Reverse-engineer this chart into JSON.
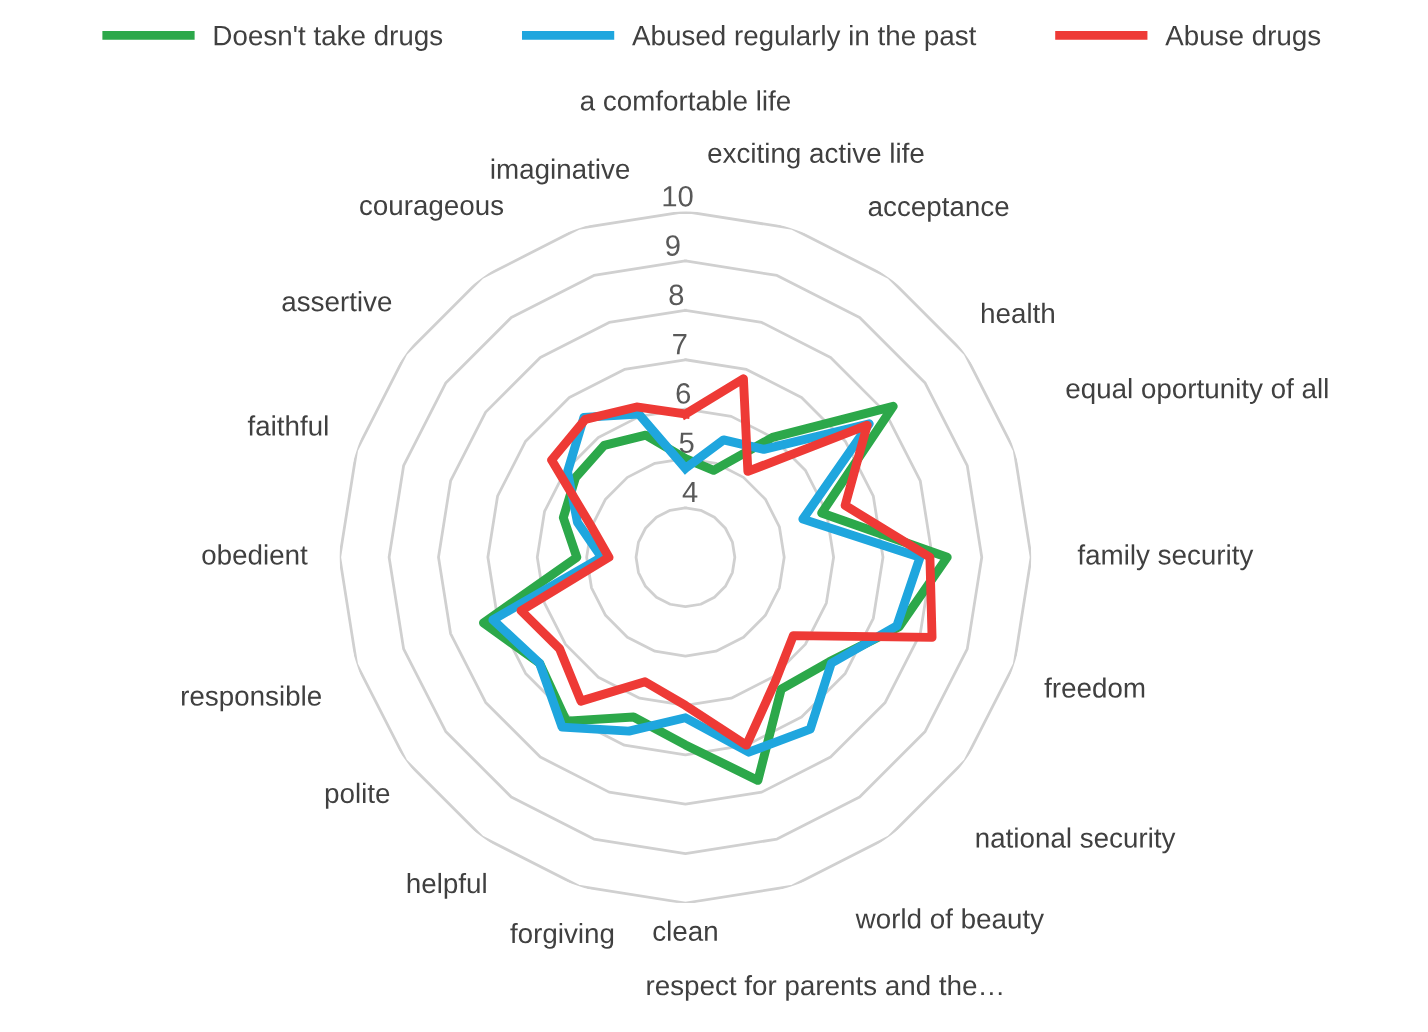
{
  "chart_data": {
    "type": "radar",
    "categories": [
      "a comfortable life",
      "exciting active life",
      "acceptance",
      "health",
      "equal oportunity of all",
      "family security",
      "freedom",
      "national security",
      "world of beauty",
      "respect for parents and the…",
      "clean",
      "forgiving",
      "helpful",
      "polite",
      "responsible",
      "obedient",
      "faithful",
      "assertive",
      "courageous",
      "imaginative"
    ],
    "series": [
      {
        "name": "Doesn't take drugs",
        "color": "#2ca84a",
        "values": [
          5.0,
          4.85,
          6.0,
          8.2,
          5.9,
          8.3,
          7.55,
          6.6,
          6.3,
          7.75,
          6.8,
          6.4,
          7.1,
          6.65,
          7.3,
          5.2,
          5.6,
          5.75,
          5.8,
          5.6
        ]
      },
      {
        "name": "Abused regularly in the past",
        "color": "#1fa6de",
        "values": [
          4.8,
          5.5,
          5.7,
          7.6,
          5.5,
          7.75,
          7.5,
          6.65,
          7.3,
          7.15,
          6.25,
          6.7,
          7.25,
          6.65,
          7.1,
          4.7,
          5.3,
          5.95,
          6.5,
          6.05
        ]
      },
      {
        "name": "Abuse drugs",
        "color": "#ee3a36",
        "values": [
          5.9,
          6.8,
          5.15,
          7.55,
          6.4,
          7.95,
          8.25,
          5.7,
          6.1,
          7.0,
          6.0,
          5.65,
          6.6,
          6.15,
          6.5,
          4.55,
          5.0,
          6.35,
          6.45,
          6.2
        ]
      }
    ],
    "ylim": [
      3,
      10
    ],
    "yticks": [
      4,
      5,
      6,
      7,
      8,
      9,
      10
    ],
    "grid": true,
    "legend": "top",
    "line_style": "solid",
    "marker": "none"
  }
}
